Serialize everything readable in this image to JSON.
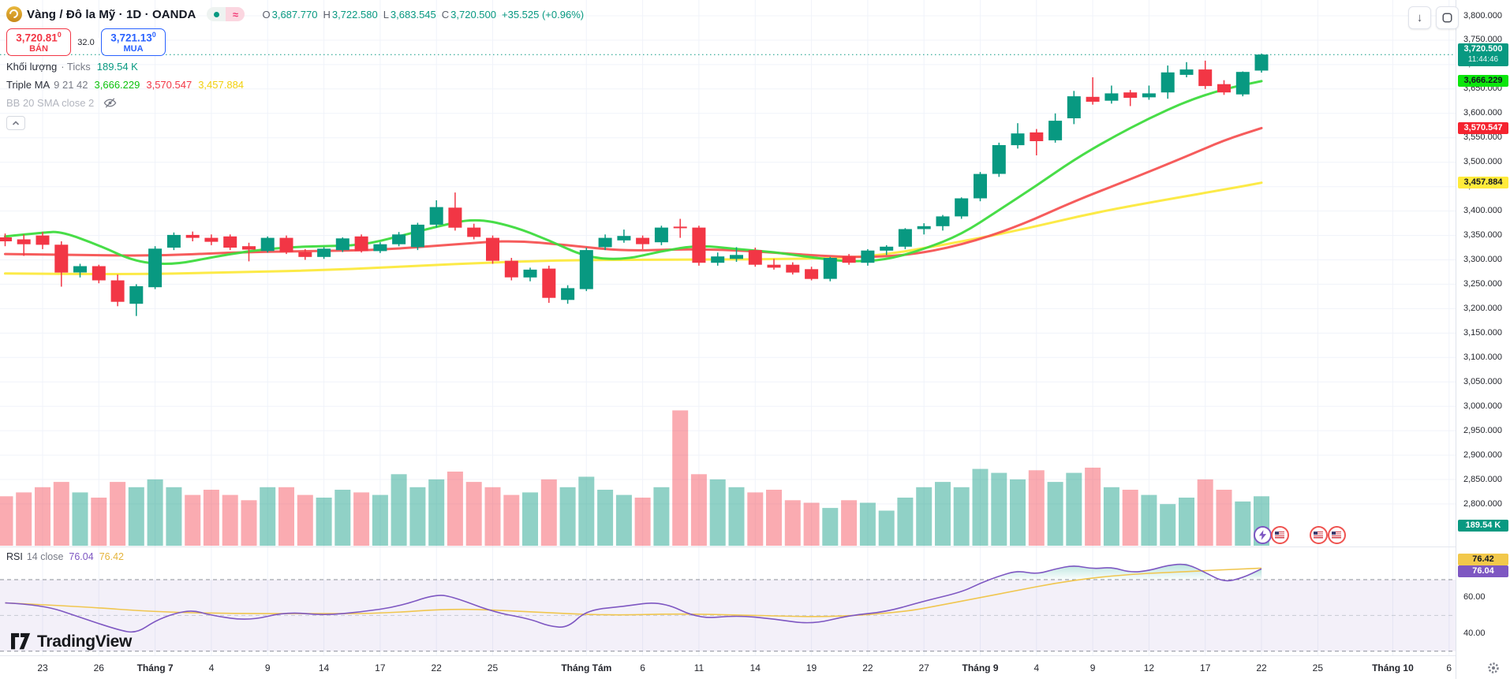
{
  "header": {
    "symbol_title": "Vàng / Đô la Mỹ · 1D · OANDA",
    "pill_approx": "≈",
    "ohlc": {
      "o_label": "O",
      "o": "3,687.770",
      "h_label": "H",
      "h": "3,722.580",
      "l_label": "L",
      "l": "3,683.545",
      "c_label": "C",
      "c": "3,720.500",
      "change": "+35.525 (+0.96%)"
    },
    "sell": {
      "price": "3,720.81",
      "sup": "0",
      "label": "BÁN"
    },
    "spread": "32.0",
    "buy": {
      "price": "3,721.13",
      "sup": "0",
      "label": "MUA"
    },
    "volume_row": {
      "label": "Khối lượng",
      "sub": "· Ticks",
      "value": "189.54 K"
    },
    "ma_row": {
      "label": "Triple MA",
      "params": "9 21 42",
      "ma1": "3,666.229",
      "ma2": "3,570.547",
      "ma3": "3,457.884"
    },
    "bb_row": {
      "label": "BB 20 SMA close 2"
    }
  },
  "rsi_legend": {
    "label": "RSI",
    "params": "14 close",
    "value": "76.04",
    "ma_value": "76.42"
  },
  "watermark": "TradingView",
  "price_axis": {
    "ticks": [
      "3,800.000",
      "3,750.000",
      "3,700.000",
      "3,650.000",
      "3,600.000",
      "3,550.000",
      "3,500.000",
      "3,450.000",
      "3,400.000",
      "3,350.000",
      "3,300.000",
      "3,250.000",
      "3,200.000",
      "3,150.000",
      "3,100.000",
      "3,050.000",
      "3,000.000",
      "2,950.000",
      "2,900.000",
      "2,850.000",
      "2,800.000"
    ],
    "rsi_ticks": [
      {
        "text": "60.00",
        "value": 60
      },
      {
        "text": "40.00",
        "value": 40
      }
    ],
    "badges": [
      {
        "name": "current-price-badge",
        "text": "3,720.500",
        "sub": "11:44:46",
        "value": 3720.5,
        "bg": "#089981",
        "fg": "#ffffff"
      },
      {
        "name": "ma-fast-badge",
        "text": "3,666.229",
        "value": 3666.229,
        "bg": "#0ce60c",
        "fg": "#131722"
      },
      {
        "name": "ma-mid-badge",
        "text": "3,570.547",
        "value": 3570.547,
        "bg": "#f5232f",
        "fg": "#ffffff"
      },
      {
        "name": "ma-slow-badge",
        "text": "3,457.884",
        "value": 3457.884,
        "bg": "#ffeb3b",
        "fg": "#131722"
      },
      {
        "name": "volume-badge",
        "text": "189.54 K",
        "y": 666,
        "bg": "#089981",
        "fg": "#ffffff"
      },
      {
        "name": "rsi-ma-badge",
        "text": "76.42",
        "y": 709,
        "bg": "#f2c84b",
        "fg": "#131722"
      },
      {
        "name": "rsi-badge",
        "text": "76.04",
        "y": 724,
        "bg": "#7e57c2",
        "fg": "#ffffff"
      }
    ]
  },
  "time_axis": {
    "ticks": [
      {
        "label": "23",
        "slot": 0
      },
      {
        "label": "26",
        "slot": 3
      },
      {
        "label": "Tháng 7",
        "slot": 6
      },
      {
        "label": "4",
        "slot": 9
      },
      {
        "label": "9",
        "slot": 12
      },
      {
        "label": "14",
        "slot": 15
      },
      {
        "label": "17",
        "slot": 18
      },
      {
        "label": "22",
        "slot": 21
      },
      {
        "label": "25",
        "slot": 24
      },
      {
        "label": "Tháng Tám",
        "slot": 29
      },
      {
        "label": "6",
        "slot": 32
      },
      {
        "label": "11",
        "slot": 35
      },
      {
        "label": "14",
        "slot": 38
      },
      {
        "label": "19",
        "slot": 41
      },
      {
        "label": "22",
        "slot": 44
      },
      {
        "label": "27",
        "slot": 47
      },
      {
        "label": "Tháng 9",
        "slot": 50
      },
      {
        "label": "4",
        "slot": 53
      },
      {
        "label": "9",
        "slot": 56
      },
      {
        "label": "12",
        "slot": 59
      },
      {
        "label": "17",
        "slot": 62
      },
      {
        "label": "22",
        "slot": 65
      },
      {
        "label": "25",
        "slot": 68
      },
      {
        "label": "Tháng 10",
        "slot": 72
      },
      {
        "label": "6",
        "slot": 75
      }
    ]
  },
  "event_markers": [
    {
      "type": "bolt",
      "x": 1600
    },
    {
      "type": "flag",
      "x": 1622
    },
    {
      "type": "flag",
      "x": 1671
    },
    {
      "type": "flag",
      "x": 1694
    }
  ],
  "chart_data": {
    "type": "candlestick",
    "title": "Vàng / Đô la Mỹ, 1D, OANDA (XAU/USD)",
    "ylim": [
      2790,
      3810
    ],
    "grid": true,
    "current": {
      "open": 3687.77,
      "high": 3722.58,
      "low": 3683.545,
      "close": 3720.5,
      "change": 35.525,
      "change_pct": 0.96,
      "volume_ticks": "189.54 K",
      "countdown": "11:44:46"
    },
    "first_slot": -2,
    "candles": [
      [
        3346,
        3354,
        3328,
        3338
      ],
      [
        3342,
        3352,
        3308,
        3332
      ],
      [
        3350,
        3357,
        3322,
        3331
      ],
      [
        3331,
        3338,
        3245,
        3274
      ],
      [
        3274,
        3292,
        3264,
        3287
      ],
      [
        3287,
        3290,
        3252,
        3258
      ],
      [
        3258,
        3270,
        3205,
        3214
      ],
      [
        3210,
        3250,
        3185,
        3246
      ],
      [
        3244,
        3328,
        3240,
        3323
      ],
      [
        3325,
        3356,
        3320,
        3351
      ],
      [
        3351,
        3358,
        3338,
        3345
      ],
      [
        3345,
        3352,
        3330,
        3337
      ],
      [
        3348,
        3352,
        3320,
        3325
      ],
      [
        3328,
        3335,
        3297,
        3321
      ],
      [
        3318,
        3348,
        3315,
        3345
      ],
      [
        3345,
        3350,
        3312,
        3316
      ],
      [
        3316,
        3322,
        3300,
        3306
      ],
      [
        3306,
        3326,
        3302,
        3323
      ],
      [
        3320,
        3346,
        3316,
        3344
      ],
      [
        3348,
        3352,
        3315,
        3318
      ],
      [
        3318,
        3336,
        3314,
        3332
      ],
      [
        3332,
        3357,
        3328,
        3352
      ],
      [
        3326,
        3376,
        3320,
        3372
      ],
      [
        3372,
        3422,
        3366,
        3408
      ],
      [
        3407,
        3438,
        3360,
        3366
      ],
      [
        3366,
        3374,
        3342,
        3347
      ],
      [
        3345,
        3350,
        3292,
        3298
      ],
      [
        3298,
        3304,
        3258,
        3264
      ],
      [
        3264,
        3284,
        3256,
        3280
      ],
      [
        3282,
        3288,
        3212,
        3222
      ],
      [
        3218,
        3248,
        3210,
        3242
      ],
      [
        3240,
        3325,
        3236,
        3320
      ],
      [
        3326,
        3352,
        3320,
        3345
      ],
      [
        3340,
        3362,
        3335,
        3349
      ],
      [
        3345,
        3350,
        3322,
        3332
      ],
      [
        3336,
        3370,
        3330,
        3366
      ],
      [
        3368,
        3384,
        3345,
        3366
      ],
      [
        3366,
        3370,
        3288,
        3294
      ],
      [
        3294,
        3315,
        3288,
        3307
      ],
      [
        3302,
        3326,
        3296,
        3310
      ],
      [
        3320,
        3325,
        3286,
        3290
      ],
      [
        3290,
        3302,
        3280,
        3284
      ],
      [
        3290,
        3295,
        3270,
        3274
      ],
      [
        3281,
        3286,
        3258,
        3261
      ],
      [
        3261,
        3306,
        3256,
        3304
      ],
      [
        3307,
        3312,
        3290,
        3294
      ],
      [
        3294,
        3322,
        3288,
        3319
      ],
      [
        3319,
        3330,
        3310,
        3327
      ],
      [
        3327,
        3365,
        3322,
        3363
      ],
      [
        3363,
        3375,
        3352,
        3369
      ],
      [
        3369,
        3392,
        3360,
        3389
      ],
      [
        3389,
        3428,
        3384,
        3426
      ],
      [
        3426,
        3480,
        3420,
        3476
      ],
      [
        3476,
        3540,
        3470,
        3535
      ],
      [
        3535,
        3580,
        3528,
        3559
      ],
      [
        3561,
        3568,
        3514,
        3543
      ],
      [
        3545,
        3600,
        3540,
        3585
      ],
      [
        3590,
        3646,
        3578,
        3635
      ],
      [
        3634,
        3674,
        3618,
        3624
      ],
      [
        3626,
        3657,
        3620,
        3641
      ],
      [
        3643,
        3648,
        3615,
        3632
      ],
      [
        3633,
        3657,
        3628,
        3641
      ],
      [
        3643,
        3698,
        3630,
        3684
      ],
      [
        3679,
        3705,
        3674,
        3690
      ],
      [
        3690,
        3708,
        3650,
        3656
      ],
      [
        3660,
        3668,
        3638,
        3643
      ],
      [
        3639,
        3686,
        3635,
        3685
      ],
      [
        3687.77,
        3722.58,
        3683.545,
        3720.5
      ]
    ],
    "volumes_k": [
      190,
      205,
      225,
      245,
      205,
      185,
      245,
      225,
      255,
      225,
      195,
      215,
      195,
      175,
      225,
      225,
      195,
      185,
      215,
      205,
      195,
      275,
      225,
      255,
      285,
      245,
      225,
      195,
      205,
      255,
      225,
      265,
      215,
      195,
      185,
      225,
      520,
      275,
      255,
      225,
      205,
      215,
      175,
      165,
      145,
      175,
      165,
      135,
      185,
      225,
      245,
      225,
      295,
      280,
      255,
      290,
      245,
      280,
      300,
      225,
      215,
      195,
      160,
      185,
      255,
      215,
      170,
      190
    ],
    "triple_ma": {
      "params": [
        9,
        21,
        42
      ],
      "values": [
        3666.229,
        3570.547,
        3457.884
      ],
      "colors": [
        "#3edb3e",
        "#f55353",
        "#fce93d"
      ],
      "fast_line": [
        [
          -2,
          3348
        ],
        [
          0,
          3356
        ],
        [
          1,
          3358
        ],
        [
          3,
          3330
        ],
        [
          5,
          3295
        ],
        [
          7,
          3290
        ],
        [
          9,
          3305
        ],
        [
          11,
          3318
        ],
        [
          13,
          3326
        ],
        [
          15,
          3328
        ],
        [
          17,
          3330
        ],
        [
          19,
          3348
        ],
        [
          21,
          3368
        ],
        [
          23,
          3385
        ],
        [
          25,
          3370
        ],
        [
          27,
          3340
        ],
        [
          29,
          3305
        ],
        [
          31,
          3300
        ],
        [
          33,
          3318
        ],
        [
          35,
          3330
        ],
        [
          37,
          3322
        ],
        [
          39,
          3316
        ],
        [
          41,
          3305
        ],
        [
          43,
          3296
        ],
        [
          45,
          3300
        ],
        [
          47,
          3322
        ],
        [
          49,
          3352
        ],
        [
          51,
          3402
        ],
        [
          53,
          3452
        ],
        [
          55,
          3505
        ],
        [
          57,
          3550
        ],
        [
          59,
          3590
        ],
        [
          61,
          3625
        ],
        [
          63,
          3650
        ],
        [
          65,
          3666
        ]
      ],
      "mid_line": [
        [
          -2,
          3312
        ],
        [
          2,
          3310
        ],
        [
          6,
          3308
        ],
        [
          10,
          3315
        ],
        [
          14,
          3318
        ],
        [
          18,
          3320
        ],
        [
          22,
          3332
        ],
        [
          25,
          3340
        ],
        [
          28,
          3330
        ],
        [
          31,
          3318
        ],
        [
          34,
          3322
        ],
        [
          37,
          3320
        ],
        [
          40,
          3312
        ],
        [
          43,
          3305
        ],
        [
          46,
          3308
        ],
        [
          49,
          3330
        ],
        [
          52,
          3368
        ],
        [
          55,
          3420
        ],
        [
          58,
          3465
        ],
        [
          61,
          3512
        ],
        [
          63,
          3545
        ],
        [
          65,
          3570
        ]
      ],
      "slow_line": [
        [
          -2,
          3272
        ],
        [
          4,
          3270
        ],
        [
          10,
          3274
        ],
        [
          16,
          3280
        ],
        [
          22,
          3292
        ],
        [
          28,
          3300
        ],
        [
          34,
          3300
        ],
        [
          40,
          3302
        ],
        [
          44,
          3305
        ],
        [
          48,
          3330
        ],
        [
          52,
          3360
        ],
        [
          56,
          3396
        ],
        [
          60,
          3424
        ],
        [
          63,
          3444
        ],
        [
          65,
          3458
        ]
      ]
    },
    "rsi": {
      "params": "14 close",
      "value": 76.04,
      "ma_value": 76.42,
      "overbought": 70,
      "oversold": 30,
      "line": [
        [
          -2,
          57
        ],
        [
          0,
          56
        ],
        [
          2,
          49
        ],
        [
          4,
          42
        ],
        [
          5,
          40
        ],
        [
          6,
          47
        ],
        [
          7,
          51
        ],
        [
          8,
          53
        ],
        [
          9,
          50
        ],
        [
          11,
          47
        ],
        [
          13,
          52
        ],
        [
          15,
          50
        ],
        [
          17,
          52
        ],
        [
          19,
          55
        ],
        [
          21,
          62
        ],
        [
          22,
          60
        ],
        [
          24,
          52
        ],
        [
          26,
          48
        ],
        [
          27,
          44
        ],
        [
          28,
          43
        ],
        [
          29,
          53
        ],
        [
          31,
          55
        ],
        [
          33,
          58
        ],
        [
          35,
          48
        ],
        [
          37,
          50
        ],
        [
          39,
          48
        ],
        [
          41,
          45
        ],
        [
          43,
          50
        ],
        [
          45,
          52
        ],
        [
          47,
          58
        ],
        [
          49,
          63
        ],
        [
          50,
          68
        ],
        [
          51,
          72
        ],
        [
          52,
          75
        ],
        [
          53,
          73
        ],
        [
          54,
          76
        ],
        [
          55,
          78
        ],
        [
          56,
          76
        ],
        [
          57,
          77
        ],
        [
          58,
          74
        ],
        [
          59,
          75
        ],
        [
          60,
          78
        ],
        [
          61,
          79
        ],
        [
          62,
          74
        ],
        [
          63,
          68.5
        ],
        [
          64,
          71
        ],
        [
          65,
          76.04
        ]
      ],
      "ma_line": [
        [
          -2,
          57
        ],
        [
          2,
          55
        ],
        [
          6,
          52
        ],
        [
          10,
          51
        ],
        [
          14,
          51
        ],
        [
          18,
          51
        ],
        [
          22,
          54
        ],
        [
          26,
          52
        ],
        [
          30,
          50
        ],
        [
          34,
          51
        ],
        [
          38,
          50
        ],
        [
          42,
          49
        ],
        [
          46,
          52
        ],
        [
          48,
          56
        ],
        [
          50,
          60
        ],
        [
          52,
          64
        ],
        [
          54,
          68
        ],
        [
          56,
          71
        ],
        [
          58,
          73
        ],
        [
          60,
          74
        ],
        [
          62,
          75
        ],
        [
          64,
          76
        ],
        [
          65,
          76.42
        ]
      ],
      "current_price_line": 3720.5
    }
  }
}
